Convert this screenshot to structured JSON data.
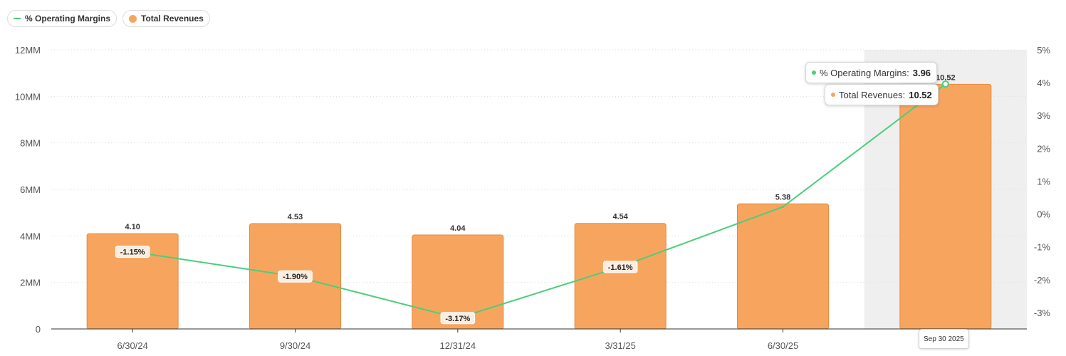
{
  "legend": {
    "line_label": "% Operating Margins",
    "bar_label": "Total Revenues"
  },
  "colors": {
    "line": "#4cce7a",
    "bar": "#f7a55e",
    "bar_stroke": "#e58a3c",
    "hover_band": "#efefef"
  },
  "chart_data": {
    "type": "bar",
    "categories": [
      "6/30/24",
      "9/30/24",
      "12/31/24",
      "3/31/25",
      "6/30/25",
      "Sep 30 2025"
    ],
    "x_tick_labels": [
      "6/30/24",
      "9/30/24",
      "12/31/24",
      "3/31/25",
      "6/30/25"
    ],
    "series": [
      {
        "name": "Total Revenues",
        "type": "bar",
        "axis": "left",
        "values": [
          4.1,
          4.53,
          4.04,
          4.54,
          5.38,
          10.52
        ],
        "labels": [
          "4.10",
          "4.53",
          "4.04",
          "4.54",
          "5.38",
          "10.52"
        ]
      },
      {
        "name": "% Operating Margins",
        "type": "line",
        "axis": "right",
        "values": [
          -1.15,
          -1.9,
          -3.17,
          -1.61,
          0.22,
          3.96
        ],
        "labels": [
          "-1.15%",
          "-1.90%",
          "-3.17%",
          "-1.61%",
          "",
          ""
        ]
      }
    ],
    "y_left": {
      "min": 0,
      "max": 12,
      "ticks": [
        "0",
        "2MM",
        "4MM",
        "6MM",
        "8MM",
        "10MM",
        "12MM"
      ]
    },
    "y_right": {
      "min": -3.5,
      "max": 5,
      "ticks": [
        "-3%",
        "-2%",
        "-1%",
        "0%",
        "1%",
        "2%",
        "3%",
        "4%",
        "5%"
      ],
      "tick_values": [
        -3,
        -2,
        -1,
        0,
        1,
        2,
        3,
        4,
        5
      ]
    },
    "grid": true,
    "legend_position": "top-left",
    "highlight_index": 5
  },
  "tooltip": {
    "line_label": "% Operating Margins: ",
    "line_value": "3.96",
    "bar_label": "Total Revenues: ",
    "bar_value": "10.52",
    "x_label": "Sep 30 2025"
  }
}
